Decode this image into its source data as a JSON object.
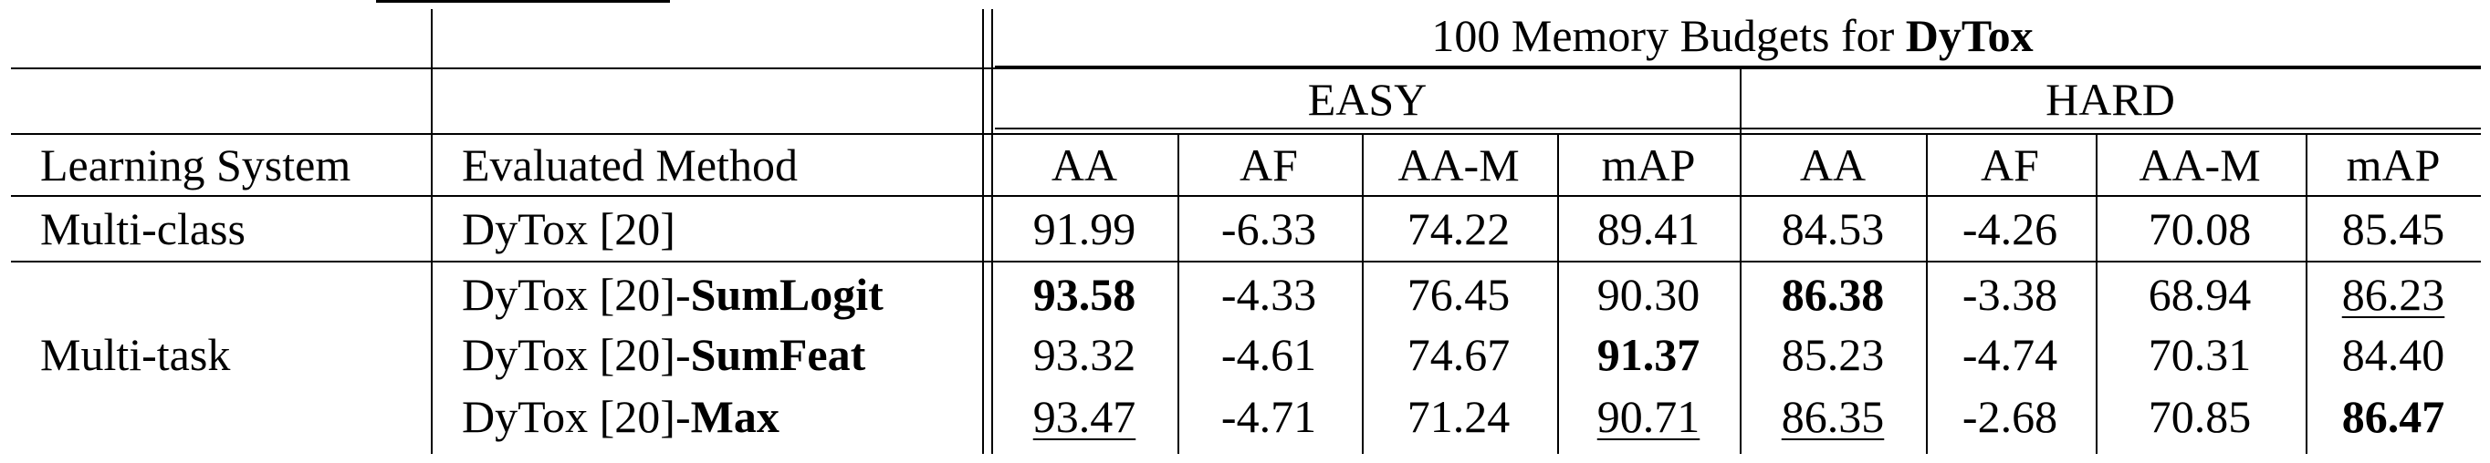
{
  "table": {
    "budget_prefix": "100 Memory Budgets for",
    "budget_model": "DyTox",
    "groups": [
      "EASY",
      "HARD"
    ],
    "col_learning_system": "Learning System",
    "col_evaluated_method": "Evaluated Method",
    "metrics": [
      "AA",
      "AF",
      "AA-M",
      "mAP"
    ],
    "rows": [
      {
        "system": "Multi-class",
        "method_base": "DyTox [20]",
        "method_suffix": "",
        "values": [
          "91.99",
          "-6.33",
          "74.22",
          "89.41",
          "84.53",
          "-4.26",
          "70.08",
          "85.45"
        ]
      },
      {
        "system": "",
        "method_base": "DyTox [20]-",
        "method_suffix": "SumLogit",
        "values": [
          "93.58",
          "-4.33",
          "76.45",
          "90.30",
          "86.38",
          "-3.38",
          "68.94",
          "86.23"
        ]
      },
      {
        "system": "Multi-task",
        "method_base": "DyTox [20]-",
        "method_suffix": "SumFeat",
        "values": [
          "93.32",
          "-4.61",
          "74.67",
          "91.37",
          "85.23",
          "-4.74",
          "70.31",
          "84.40"
        ]
      },
      {
        "system": "",
        "method_base": "DyTox [20]-",
        "method_suffix": "Max",
        "values": [
          "93.47",
          "-4.71",
          "71.24",
          "90.71",
          "86.35",
          "-2.68",
          "70.85",
          "86.47"
        ]
      }
    ]
  }
}
